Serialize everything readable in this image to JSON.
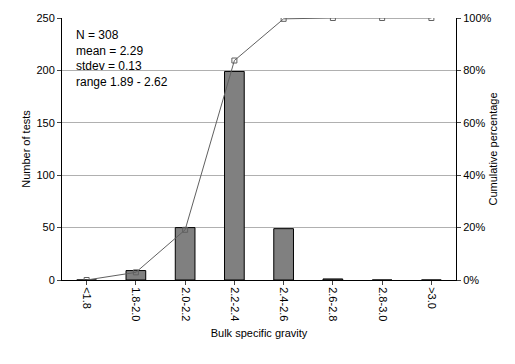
{
  "chart_data": {
    "type": "bar",
    "x_label": "Bulk specific gravity",
    "y_label": "Number of tests",
    "y2_label": "Cumulative percentage",
    "annotations": [
      "N = 308",
      "mean = 2.29",
      "stdev = 0.13",
      "range 1.89 - 2.62"
    ],
    "categories": [
      "<1.8",
      "1.8-2.0",
      "2.0-2.2",
      "2.2-2.4",
      "2.4-2.6",
      "2.6-2.8",
      "2.8-3.0",
      ">3.0"
    ],
    "series": [
      {
        "type": "bar",
        "color": "#808080",
        "values": [
          0,
          9,
          50,
          199,
          49,
          1,
          0,
          0
        ]
      },
      {
        "type": "line",
        "axis": "y2",
        "color": "#606060",
        "marker": "square-open",
        "line_style": "solid",
        "values": [
          0,
          2.92,
          19.16,
          83.77,
          99.68,
          100,
          100,
          100
        ]
      }
    ],
    "ylim": [
      0,
      250
    ],
    "yticks": [
      0,
      50,
      100,
      150,
      200,
      250
    ],
    "y2lim": [
      0,
      100
    ],
    "y2ticks": [
      {
        "value": 0,
        "label": "0%"
      },
      {
        "value": 20,
        "label": "20%"
      },
      {
        "value": 40,
        "label": "40%"
      },
      {
        "value": 60,
        "label": "60%"
      },
      {
        "value": 80,
        "label": "80%"
      },
      {
        "value": 100,
        "label": "100%"
      }
    ],
    "grid": true
  }
}
